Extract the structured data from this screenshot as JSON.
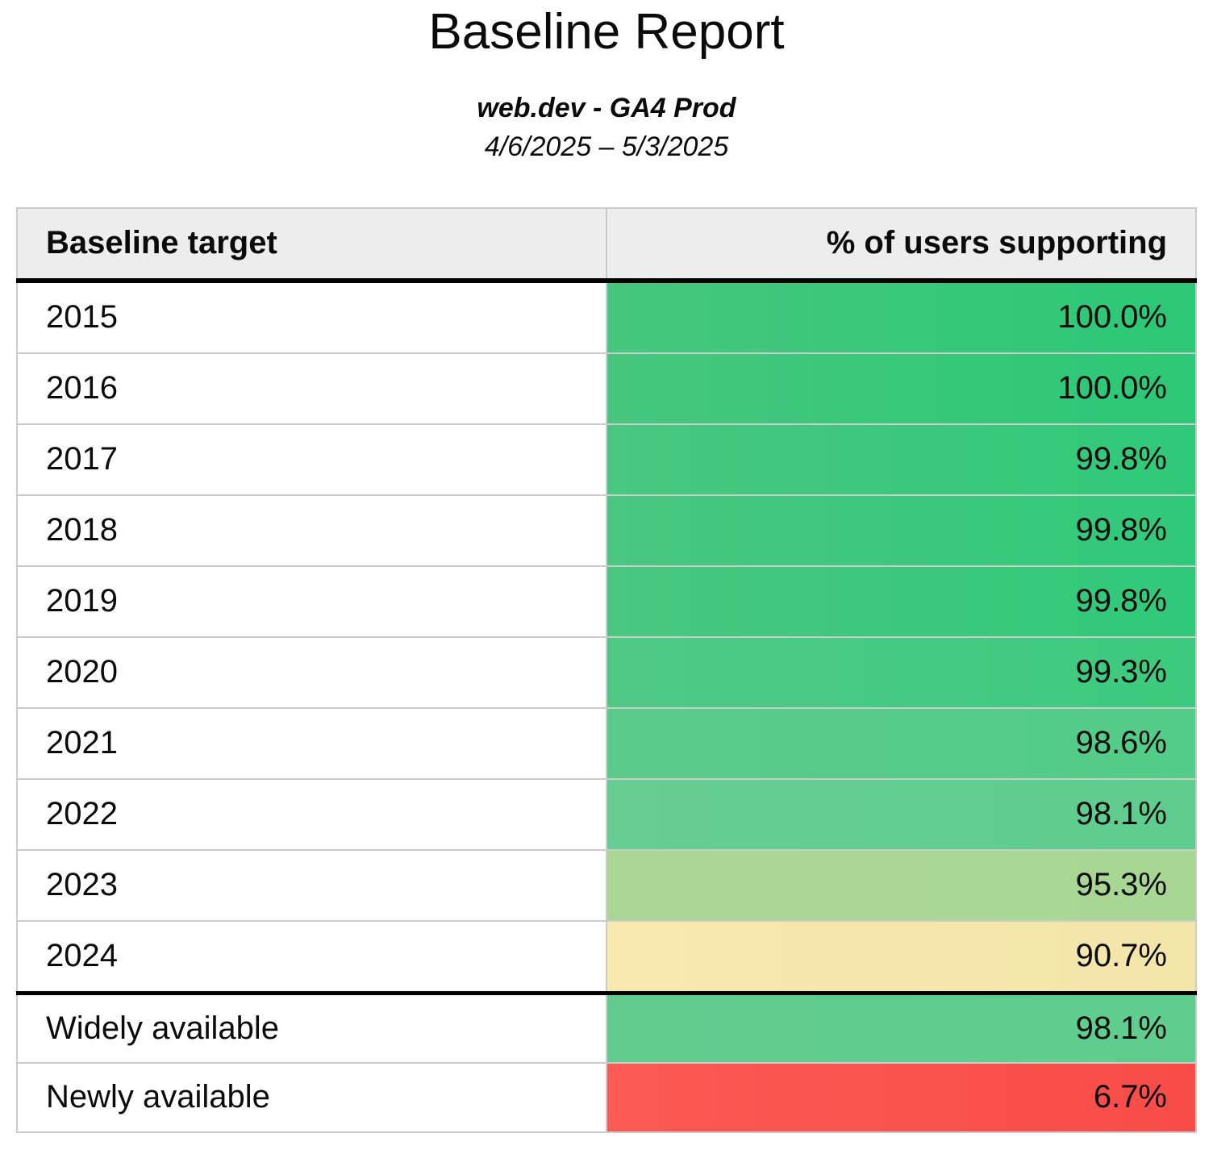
{
  "report": {
    "title": "Baseline Report",
    "subtitle": "web.dev - GA4 Prod",
    "date_range": "4/6/2025 – 5/3/2025"
  },
  "table": {
    "columns": [
      "Baseline target",
      "% of users supporting"
    ],
    "rows": [
      {
        "target": "2015",
        "value": "100.0%",
        "color_left": "#46c77e",
        "color_right": "#2bc876",
        "section_start": false
      },
      {
        "target": "2016",
        "value": "100.0%",
        "color_left": "#46c77e",
        "color_right": "#2bc876",
        "section_start": false
      },
      {
        "target": "2017",
        "value": "99.8%",
        "color_left": "#48c880",
        "color_right": "#30c979",
        "section_start": false
      },
      {
        "target": "2018",
        "value": "99.8%",
        "color_left": "#48c880",
        "color_right": "#30c979",
        "section_start": false
      },
      {
        "target": "2019",
        "value": "99.8%",
        "color_left": "#48c880",
        "color_right": "#30c979",
        "section_start": false
      },
      {
        "target": "2020",
        "value": "99.3%",
        "color_left": "#4fca85",
        "color_right": "#3ccb7e",
        "section_start": false
      },
      {
        "target": "2021",
        "value": "98.6%",
        "color_left": "#5bcb8b",
        "color_right": "#52cc88",
        "section_start": false
      },
      {
        "target": "2022",
        "value": "98.1%",
        "color_left": "#66cd93",
        "color_right": "#5ecd8e",
        "section_start": false
      },
      {
        "target": "2023",
        "value": "95.3%",
        "color_left": "#abd795",
        "color_right": "#a8d794",
        "section_start": false
      },
      {
        "target": "2024",
        "value": "90.7%",
        "color_left": "#f8e9ae",
        "color_right": "#f3e6a9",
        "section_start": false
      },
      {
        "target": "Widely available",
        "value": "98.1%",
        "color_left": "#62cc8f",
        "color_right": "#5ecd8d",
        "section_start": true
      },
      {
        "target": "Newly available",
        "value": "6.7%",
        "color_left": "#fb5a54",
        "color_right": "#f94c47",
        "section_start": false
      }
    ]
  },
  "colors": {
    "header_background": "#ededed",
    "grid_border": "#cbcbcb",
    "section_divider": "#000000",
    "text": "#0b0b0b",
    "green_high": "#2bc876",
    "green_mid": "#5ecd8e",
    "green_low": "#a8d794",
    "yellow": "#f3e6a9",
    "red": "#f94c47"
  },
  "chart_data": {
    "type": "table",
    "title": "Baseline Report",
    "subtitle": "web.dev - GA4 Prod",
    "date_range": "4/6/2025 – 5/3/2025",
    "columns": [
      "Baseline target",
      "% of users supporting"
    ],
    "categories": [
      "2015",
      "2016",
      "2017",
      "2018",
      "2019",
      "2020",
      "2021",
      "2022",
      "2023",
      "2024",
      "Widely available",
      "Newly available"
    ],
    "values": [
      100.0,
      100.0,
      99.8,
      99.8,
      99.8,
      99.3,
      98.6,
      98.1,
      95.3,
      90.7,
      98.1,
      6.7
    ],
    "value_format": "percent",
    "styling_note": "value cells use red-yellow-green heatmap conditional formatting; thick black rule separates year rows from availability rows"
  }
}
